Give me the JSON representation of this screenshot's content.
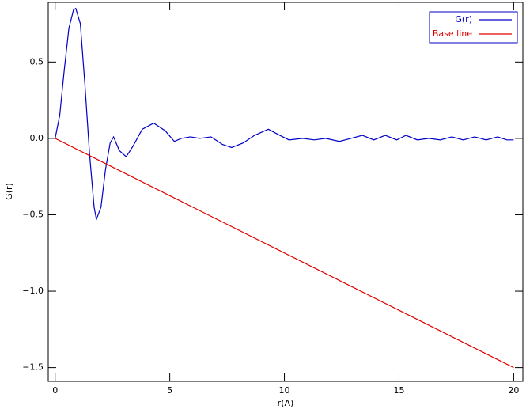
{
  "chart_data": {
    "type": "line",
    "x_label": "r(A)",
    "y_label": "G(r)",
    "xlim": [
      -0.3,
      20.4
    ],
    "ylim": [
      -1.59,
      0.89
    ],
    "xticks": [
      0,
      5,
      10,
      15,
      20
    ],
    "yticks": [
      {
        "value": 0.5,
        "label": "0.5"
      },
      {
        "value": 0.0,
        "label": "0.0"
      },
      {
        "value": -0.5,
        "label": "−0.5"
      },
      {
        "value": -1.0,
        "label": "−1.0"
      },
      {
        "value": -1.5,
        "label": "−1.5"
      }
    ],
    "legend": "upper right",
    "series": [
      {
        "name": "G(r)",
        "color": "#0000c8",
        "x": [
          0,
          0.2,
          0.4,
          0.6,
          0.8,
          0.9,
          1.1,
          1.3,
          1.5,
          1.7,
          1.8,
          2.0,
          2.2,
          2.4,
          2.55,
          2.8,
          3.1,
          3.4,
          3.8,
          4.3,
          4.8,
          5.2,
          5.5,
          5.9,
          6.3,
          6.8,
          7.3,
          7.7,
          8.2,
          8.7,
          9.3,
          9.8,
          10.2,
          10.8,
          11.3,
          11.8,
          12.4,
          12.9,
          13.4,
          13.9,
          14.4,
          14.9,
          15.3,
          15.8,
          16.3,
          16.8,
          17.3,
          17.8,
          18.3,
          18.8,
          19.3,
          19.7,
          20.0
        ],
        "values": [
          0.0,
          0.15,
          0.45,
          0.72,
          0.84,
          0.85,
          0.75,
          0.35,
          -0.1,
          -0.45,
          -0.53,
          -0.45,
          -0.2,
          -0.03,
          0.01,
          -0.08,
          -0.12,
          -0.05,
          0.06,
          0.1,
          0.05,
          -0.02,
          0.0,
          0.01,
          0.0,
          0.01,
          -0.04,
          -0.06,
          -0.03,
          0.02,
          0.06,
          0.02,
          -0.01,
          0.0,
          -0.01,
          0.0,
          -0.02,
          0.0,
          0.02,
          -0.01,
          0.02,
          -0.01,
          0.02,
          -0.01,
          0.0,
          -0.01,
          0.01,
          -0.01,
          0.01,
          -0.01,
          0.01,
          -0.01,
          -0.01
        ]
      },
      {
        "name": "Base line",
        "color": "#e00000",
        "x": [
          0,
          20
        ],
        "values": [
          0.0,
          -1.5
        ]
      }
    ]
  }
}
